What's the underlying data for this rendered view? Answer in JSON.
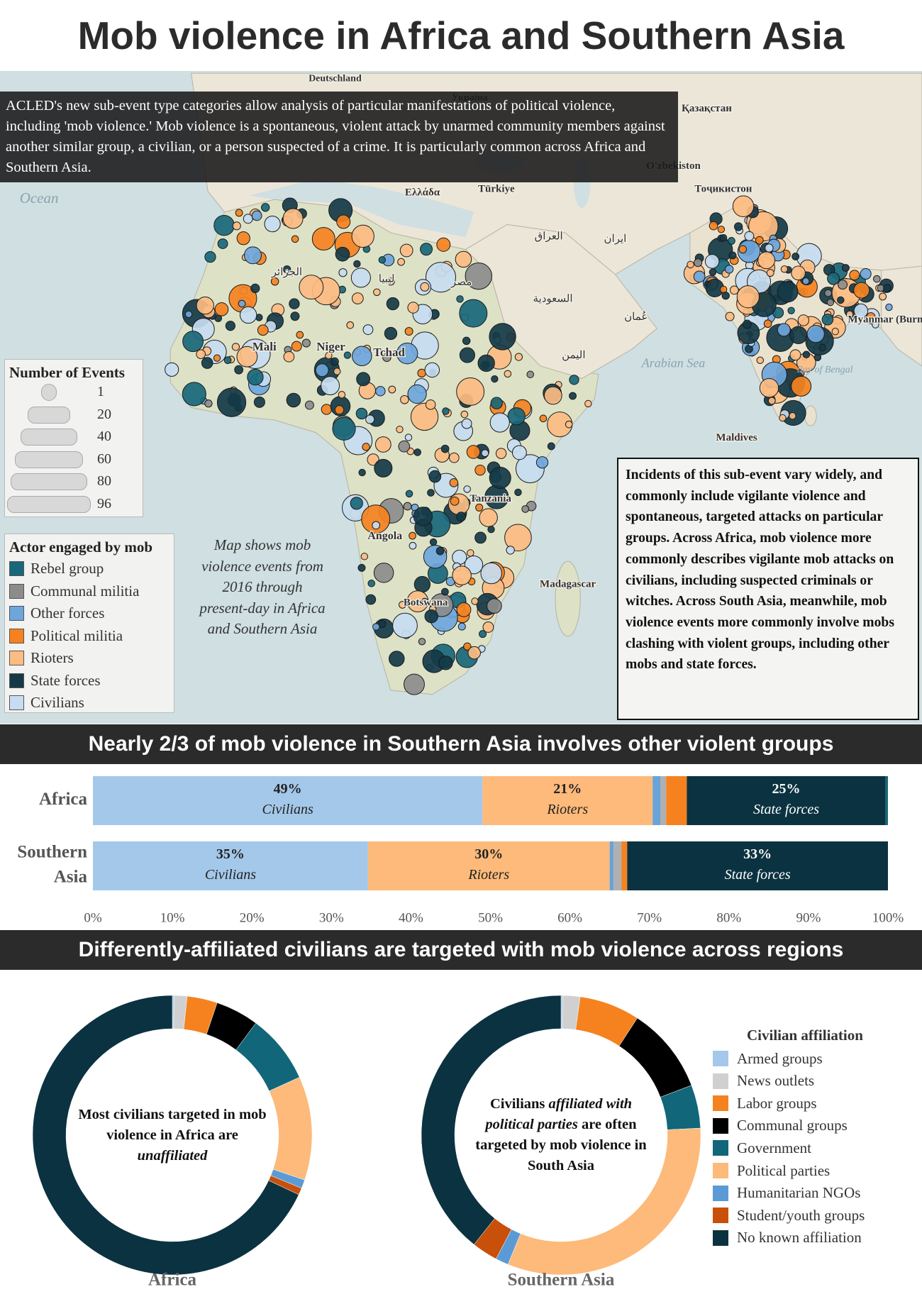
{
  "title": "Mob violence in Africa and Southern Asia",
  "map": {
    "intro": "ACLED's new sub-event type categories allow analysis of particular manifestations of political violence, including 'mob violence.'  Mob violence is a spontaneous, violent attack by unarmed community members against another similar group, a civilian, or a person suspected of a crime. It is particularly common across Africa and Southern Asia.",
    "note": "Map shows mob violence events from 2016 through present-day in Africa and Southern Asia",
    "side_note": "Incidents of this sub-event vary widely, and commonly include vigilante violence and spontaneous, targeted attacks on particular groups. Across Africa, mob violence more commonly describes vigilante mob attacks on civilians, including suspected criminals or witches. Across South Asia, meanwhile, mob violence events more commonly involve mobs clashing with violent groups, including other mobs and state forces.",
    "size_legend": {
      "title": "Number of Events",
      "values": [
        1,
        20,
        40,
        60,
        80,
        96
      ]
    },
    "actor_legend": {
      "title": "Actor engaged by mob",
      "items": [
        {
          "name": "Rebel group",
          "color": "#18677a"
        },
        {
          "name": "Communal militia",
          "color": "#8c8c8c"
        },
        {
          "name": "Other forces",
          "color": "#6ea6dc"
        },
        {
          "name": "Political militia",
          "color": "#f5821f"
        },
        {
          "name": "Rioters",
          "color": "#fcbc82"
        },
        {
          "name": "State forces",
          "color": "#143a48"
        },
        {
          "name": "Civilians",
          "color": "#c5dcf1"
        }
      ]
    },
    "labels": [
      "Deutschland",
      "Україна",
      "Қазақстан",
      "O'zbekiston",
      "Тоҷикистон",
      "Ελλάδα",
      "Türkiye",
      "Ocean",
      "الجزائر",
      "ليبيا",
      "مصر",
      "العراق",
      "ایران",
      "السعودية",
      "عُمان",
      "اليمن",
      "Mali",
      "Niger",
      "Tchad",
      "Angola",
      "Tanzania",
      "Botswana",
      "Madagascar",
      "Maldives",
      "Arabian Sea",
      "Bay of Bengal",
      "Myanmar (Burma)"
    ]
  },
  "affiliation_legend": {
    "title": "Civilian affiliation",
    "categories": [
      "Armed groups",
      "News outlets",
      "Labor groups",
      "Communal groups",
      "Government",
      "Political parties",
      "Humanitarian NGOs",
      "Student/youth groups",
      "No known affiliation"
    ],
    "colors": [
      "#a4c8ea",
      "#d0d0d0",
      "#f5821f",
      "#000000",
      "#11667a",
      "#fdba7a",
      "#5b9bd5",
      "#c8500a",
      "#0b3240"
    ]
  },
  "chart_data": [
    {
      "type": "stacked-bar",
      "title": "Nearly 2/3 of mob violence in Southern Asia involves other violent groups",
      "categories": [
        "Africa",
        "Southern Asia"
      ],
      "series": [
        {
          "name": "Civilians",
          "color": "#a4c8ea",
          "values": [
            49,
            34.6
          ],
          "value_labels": [
            "49%",
            "35%"
          ]
        },
        {
          "name": "Rioters",
          "color": "#fdba7a",
          "values": [
            21.4,
            30.4
          ],
          "value_labels": [
            "21%",
            "30%"
          ]
        },
        {
          "name": "Other forces",
          "color": "#6aa3d8",
          "values": [
            1,
            0.5
          ]
        },
        {
          "name": "Communal militia",
          "color": "#b0b0b0",
          "values": [
            0.7,
            1
          ]
        },
        {
          "name": "Political militia",
          "color": "#f5821f",
          "values": [
            2.6,
            0.7
          ]
        },
        {
          "name": "State forces",
          "color": "#0b3240",
          "values": [
            25,
            32.8
          ],
          "value_labels": [
            "25%",
            "33%"
          ]
        },
        {
          "name": "Rebel group",
          "color": "#18677a",
          "values": [
            0.3,
            0
          ]
        }
      ],
      "xlim": [
        0,
        100
      ],
      "xticks": [
        {
          "value": 0,
          "label": "0%"
        },
        {
          "value": 10,
          "label": "10%"
        },
        {
          "value": 20,
          "label": "20%"
        },
        {
          "value": 30,
          "label": "30%"
        },
        {
          "value": 40,
          "label": "40%"
        },
        {
          "value": 50,
          "label": "50%"
        },
        {
          "value": 60,
          "label": "60%"
        },
        {
          "value": 70,
          "label": "70%"
        },
        {
          "value": 80,
          "label": "80%"
        },
        {
          "value": 90,
          "label": "90%"
        },
        {
          "value": 100,
          "label": "100%"
        }
      ]
    },
    {
      "type": "donut",
      "section_title": "Differently-affiliated civilians are targeted with mob violence across regions",
      "title": "Africa",
      "values": [
        0.2,
        1.5,
        3.5,
        5,
        8,
        12,
        1,
        0.8,
        68
      ],
      "center_text": [
        "Most civilians targeted in mob violence in Africa are ",
        "unaffiliated"
      ]
    },
    {
      "type": "donut",
      "title": "Southern Asia",
      "values": [
        0.2,
        2,
        7,
        10,
        5,
        32,
        1.5,
        3,
        39.3
      ],
      "center_text": [
        "Civilians ",
        "affiliated with political parties",
        " are often targeted by mob violence in South Asia"
      ]
    }
  ]
}
